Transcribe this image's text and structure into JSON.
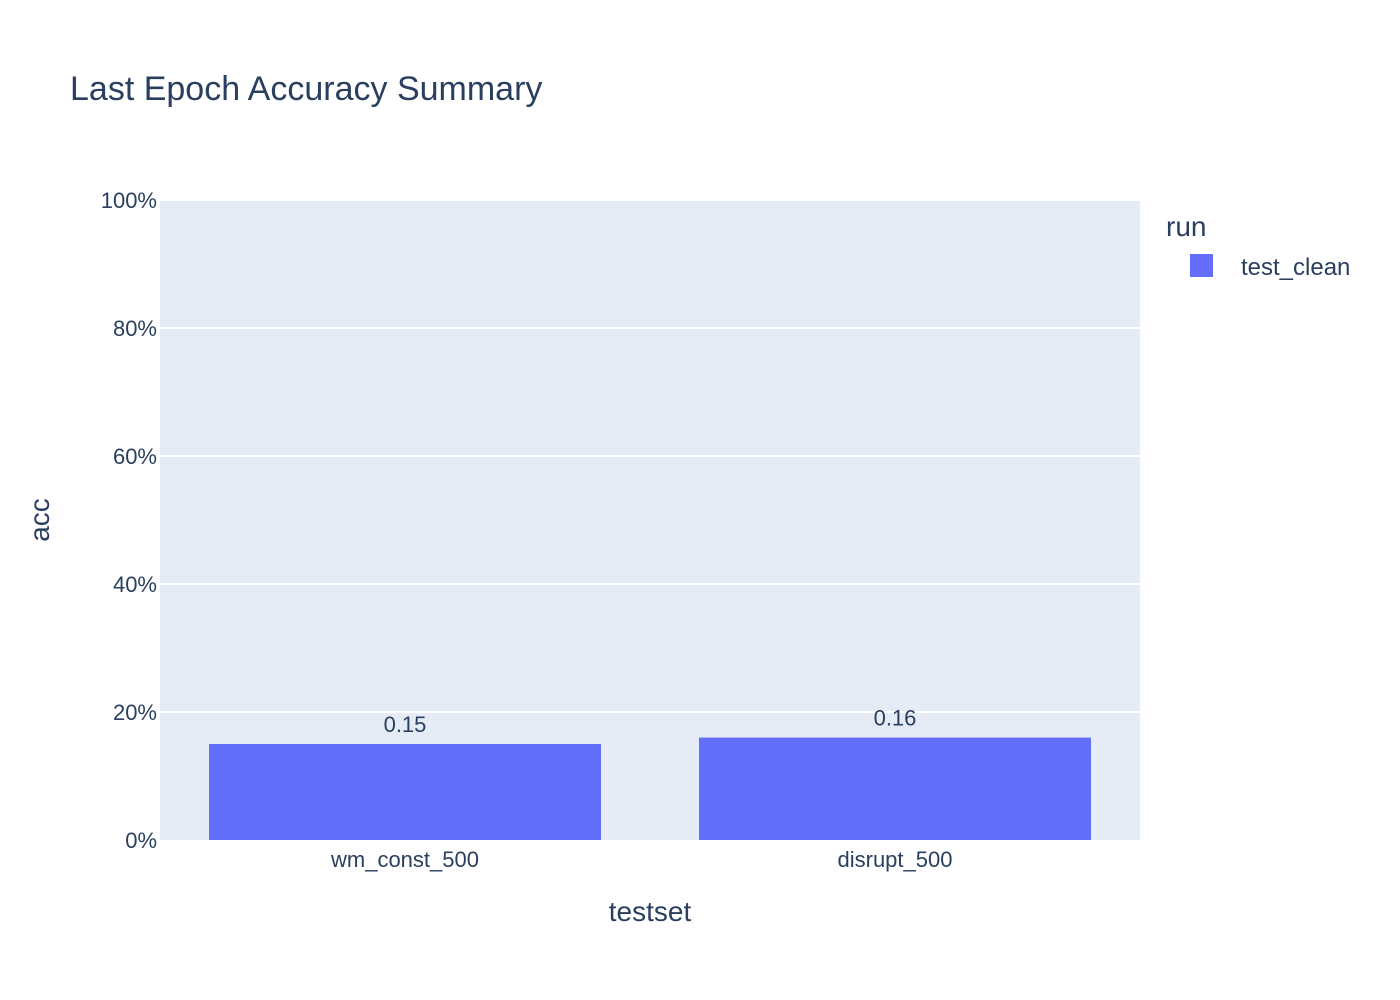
{
  "chart_data": {
    "type": "bar",
    "title": "Last Epoch Accuracy Summary",
    "xlabel": "testset",
    "ylabel": "acc",
    "categories": [
      "wm_const_500",
      "disrupt_500"
    ],
    "series": [
      {
        "name": "test_clean",
        "values": [
          0.15,
          0.16
        ],
        "labels": [
          "0.15",
          "0.16"
        ],
        "color": "#636efa"
      }
    ],
    "ylim": [
      0,
      1
    ],
    "yticks": [
      0,
      0.2,
      0.4,
      0.6,
      0.8,
      1.0
    ],
    "ytick_labels": [
      "0%",
      "20%",
      "40%",
      "60%",
      "80%",
      "100%"
    ],
    "legend": {
      "title": "run",
      "position": "top-right"
    },
    "grid": true,
    "plot_background": "#e5ecf6",
    "gridline_color": "#ffffff",
    "text_color": "#2a3f5f"
  }
}
